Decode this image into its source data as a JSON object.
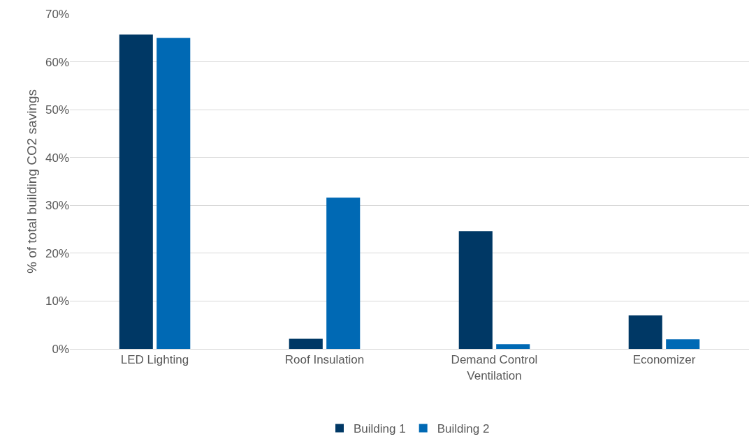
{
  "chart_data": {
    "type": "bar",
    "ylabel": "% of total building CO2 savings",
    "categories": [
      "LED Lighting",
      "Roof Insulation",
      "Demand Control Ventilation",
      "Economizer"
    ],
    "series": [
      {
        "name": "Building 1",
        "color": "#003865",
        "values": [
          65.7,
          2.1,
          24.6,
          7.0
        ]
      },
      {
        "name": "Building 2",
        "color": "#0069b4",
        "values": [
          65.0,
          31.6,
          1.0,
          2.0
        ]
      }
    ],
    "ylim": [
      0,
      70
    ],
    "yticks": [
      {
        "value": 0,
        "label": "0%"
      },
      {
        "value": 10,
        "label": "10%"
      },
      {
        "value": 20,
        "label": "20%"
      },
      {
        "value": 30,
        "label": "30%"
      },
      {
        "value": 40,
        "label": "40%"
      },
      {
        "value": 50,
        "label": "50%"
      },
      {
        "value": 60,
        "label": "60%"
      },
      {
        "value": 70,
        "label": "70%"
      }
    ],
    "grid": "y",
    "legend": "bottom"
  }
}
